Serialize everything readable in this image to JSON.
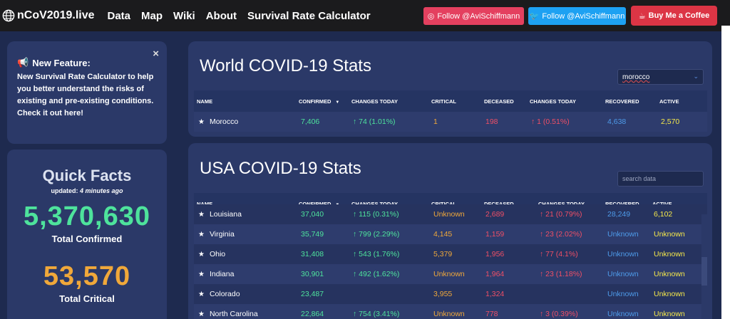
{
  "nav": {
    "brand": "nCoV2019.live",
    "links": [
      "Data",
      "Map",
      "Wiki",
      "About",
      "Survival Rate Calculator"
    ],
    "instagram_label": "Follow @AviSchiffmann",
    "twitter_label": "Follow @AviSchiffmann",
    "coffee_label": "Buy Me a Coffee"
  },
  "feature": {
    "title": "New Feature:",
    "body": "New Survival Rate Calculator to help you better understand the risks of existing and pre-existing conditions. Check it out here!",
    "close": "×"
  },
  "facts": {
    "title": "Quick Facts",
    "updated_prefix": "updated:",
    "updated_value": "4 minutes ago",
    "confirmed": "5,370,630",
    "confirmed_label": "Total Confirmed",
    "critical": "53,570",
    "critical_label": "Total Critical"
  },
  "world": {
    "title": "World COVID-19 Stats",
    "select_value": "morocco",
    "headers": [
      "NAME",
      "CONFIRMED",
      "CHANGES TODAY",
      "CRITICAL",
      "DECEASED",
      "CHANGES TODAY",
      "RECOVERED",
      "ACTIVE"
    ],
    "rows": [
      {
        "name": "Morocco",
        "confirmed": "7,406",
        "change": "↑ 74 (1.01%)",
        "critical": "1",
        "deceased": "198",
        "dchange": "↑ 1 (0.51%)",
        "recovered": "4,638",
        "active": "2,570"
      }
    ]
  },
  "usa": {
    "title": "USA COVID-19 Stats",
    "search_placeholder": "search data",
    "headers": [
      "NAME",
      "CONFIRMED",
      "CHANGES TODAY",
      "CRITICAL",
      "DECEASED",
      "CHANGES TODAY",
      "RECOVERED",
      "ACTIVE"
    ],
    "rows": [
      {
        "name": "Louisiana",
        "confirmed": "37,040",
        "change": "↑ 115 (0.31%)",
        "critical": "Unknown",
        "deceased": "2,689",
        "dchange": "↑ 21 (0.79%)",
        "recovered": "28,249",
        "active": "6,102"
      },
      {
        "name": "Virginia",
        "confirmed": "35,749",
        "change": "↑ 799 (2.29%)",
        "critical": "4,145",
        "deceased": "1,159",
        "dchange": "↑ 23 (2.02%)",
        "recovered": "Unknown",
        "active": "Unknown"
      },
      {
        "name": "Ohio",
        "confirmed": "31,408",
        "change": "↑ 543 (1.76%)",
        "critical": "5,379",
        "deceased": "1,956",
        "dchange": "↑ 77 (4.1%)",
        "recovered": "Unknown",
        "active": "Unknown"
      },
      {
        "name": "Indiana",
        "confirmed": "30,901",
        "change": "↑ 492 (1.62%)",
        "critical": "Unknown",
        "deceased": "1,964",
        "dchange": "↑ 23 (1.18%)",
        "recovered": "Unknown",
        "active": "Unknown"
      },
      {
        "name": "Colorado",
        "confirmed": "23,487",
        "change": "",
        "critical": "3,955",
        "deceased": "1,324",
        "dchange": "",
        "recovered": "Unknown",
        "active": "Unknown"
      },
      {
        "name": "North Carolina",
        "confirmed": "22,864",
        "change": "↑ 754 (3.41%)",
        "critical": "Unknown",
        "deceased": "778",
        "dchange": "↑ 3 (0.39%)",
        "recovered": "Unknown",
        "active": "Unknown"
      }
    ]
  }
}
